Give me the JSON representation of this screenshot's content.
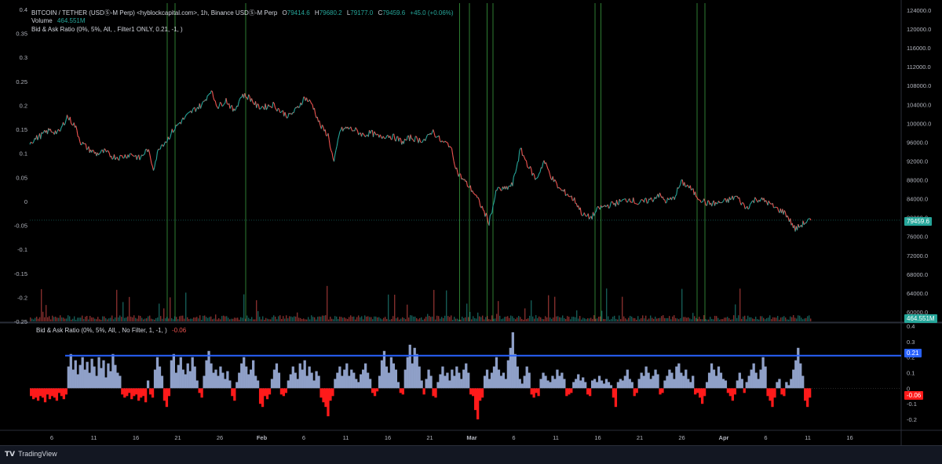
{
  "main_legend": {
    "symbol": "BITCOIN / TETHER (USDⓈ-M Perp) <hyblockcapital.com>, 1h, Binance USDⓈ-M Perp",
    "o_label": "O",
    "o": "79414.6",
    "h_label": "H",
    "h": "79680.2",
    "l_label": "L",
    "l": "79177.0",
    "c_label": "C",
    "c": "79459.6",
    "change": "+45.0 (+0.06%)",
    "volume_label": "Volume",
    "volume_value": "464.551M",
    "indicator1": "Bid & Ask Ratio (0%, 5%, All, , Filter1 ONLY, 0.21, -1, )"
  },
  "sub_legend": {
    "indicator2": "Bid & Ask Ratio (0%, 5%, All, , No Filter, 1, -1, )",
    "indicator2_value": "-0.06"
  },
  "tags": {
    "price_current": "79459.6",
    "volume_current": "464.551M",
    "ratio_line": "0.21",
    "ratio_current": "-0.06"
  },
  "footer": {
    "brand": "TradingView"
  },
  "colors": {
    "up": "#26a69a",
    "down": "#ef5350",
    "bars_pos": "#8fa0c8",
    "bars_neg": "#ff1a1a",
    "threshold_line": "#2962ff",
    "signal": "#2e7d32"
  },
  "chart_data": [
    {
      "type": "line",
      "title": "",
      "y_left_ticks": [
        "0.4",
        "0.35",
        "0.3",
        "0.25",
        "0.2",
        "0.15",
        "0.1",
        "0.05",
        "0",
        "-0.05",
        "-0.1",
        "-0.15",
        "-0.2",
        "-0.25"
      ],
      "y_right_ticks": [
        "124000.0",
        "120000.0",
        "116000.0",
        "112000.0",
        "108000.0",
        "104000.0",
        "100000.0",
        "96000.0",
        "92000.0",
        "88000.0",
        "84000.0",
        "80000.0",
        "76000.0",
        "72000.0",
        "68000.0",
        "64000.0",
        "60000.0"
      ],
      "ylim": [
        58000,
        124500
      ],
      "x_ticks": [
        "6",
        "11",
        "16",
        "21",
        "26",
        "Feb",
        "6",
        "11",
        "16",
        "21",
        "Mar",
        "6",
        "11",
        "16",
        "21",
        "26",
        "Apr",
        "6",
        "11",
        "16"
      ],
      "x_tick_bold": [
        "Feb",
        "Mar",
        "Apr"
      ],
      "last_price": 79459.6,
      "series": [
        {
          "x": [
            0,
            6,
            10,
            15,
            19,
            23,
            26,
            30,
            34,
            38,
            42,
            46,
            52,
            56,
            60,
            63,
            66,
            70,
            73,
            76,
            80,
            84,
            88,
            92,
            96,
            100,
            104,
            108,
            112,
            116,
            120,
            124,
            128,
            132,
            136,
            140,
            144,
            148,
            152,
            155,
            158,
            162,
            166,
            170,
            174,
            178,
            182,
            186,
            190,
            194,
            198,
            202,
            205,
            210,
            214,
            218,
            222,
            226,
            230,
            234,
            238,
            242,
            246,
            250,
            254,
            258,
            262,
            266,
            270,
            274,
            278,
            282,
            286,
            290,
            294,
            298,
            302,
            306,
            310,
            314,
            318,
            320,
            324,
            328,
            332,
            336,
            340,
            345,
            350,
            355,
            360,
            365,
            370,
            375,
            380,
            385,
            390,
            395,
            398
          ],
          "values": [
            96000,
            97500,
            98500,
            98000,
            101500,
            99500,
            96000,
            94500,
            93500,
            94000,
            93000,
            92800,
            93500,
            92500,
            94500,
            90500,
            95000,
            96500,
            98500,
            100000,
            101500,
            103000,
            104000,
            107000,
            103500,
            105000,
            102500,
            106000,
            105500,
            103500,
            103500,
            104000,
            102500,
            101500,
            103000,
            105500,
            104000,
            99500,
            97500,
            91500,
            98500,
            99000,
            98500,
            97500,
            98000,
            97000,
            97500,
            97000,
            96000,
            97000,
            96500,
            96500,
            98500,
            96000,
            95500,
            89500,
            87500,
            85500,
            82500,
            79000,
            86000,
            86000,
            87000,
            94500,
            91000,
            88000,
            92000,
            88500,
            86000,
            85000,
            83500,
            80500,
            80000,
            82000,
            82500,
            83000,
            83500,
            84000,
            83000,
            83500,
            84000,
            85000,
            83500,
            84000,
            87500,
            86500,
            84500,
            83000,
            83000,
            83500,
            84500,
            82000,
            84000,
            83500,
            82000,
            81000,
            77500,
            79000,
            79460
          ]
        }
      ],
      "signal_lines_x": [
        70,
        74,
        110,
        219,
        224,
        233,
        236,
        288,
        291,
        340,
        344
      ]
    },
    {
      "type": "bar",
      "title": "",
      "ylim": [
        -0.25,
        0.4
      ],
      "y_ticks": [
        "0.4",
        "0.3",
        "0.2",
        "0.1",
        "0",
        "-0.1",
        "-0.2"
      ],
      "threshold": 0.21,
      "last_value": -0.06,
      "values": [
        -0.05,
        -0.07,
        -0.06,
        -0.08,
        -0.05,
        -0.06,
        -0.09,
        -0.04,
        -0.07,
        -0.05,
        -0.06,
        -0.08,
        -0.03,
        -0.05,
        -0.07,
        -0.04,
        0.14,
        0.22,
        0.12,
        0.18,
        0.09,
        0.15,
        0.2,
        0.12,
        0.17,
        0.1,
        0.19,
        0.14,
        0.08,
        0.2,
        0.13,
        0.18,
        0.07,
        0.16,
        0.11,
        0.22,
        0.15,
        0.1,
        0.08,
        -0.04,
        -0.06,
        -0.05,
        -0.03,
        -0.07,
        -0.05,
        -0.04,
        -0.08,
        -0.06,
        -0.05,
        -0.09,
        0.05,
        -0.04,
        -0.06,
        0.12,
        0.2,
        0.14,
        0.08,
        -0.08,
        -0.12,
        -0.05,
        0.18,
        0.22,
        0.1,
        0.15,
        0.2,
        0.12,
        0.09,
        0.16,
        0.11,
        0.2,
        0.14,
        0.05,
        -0.03,
        -0.06,
        0.08,
        0.18,
        0.24,
        0.16,
        0.1,
        0.12,
        0.08,
        0.14,
        0.1,
        0.06,
        0.11,
        0.05,
        -0.05,
        -0.08,
        0.04,
        0.1,
        0.16,
        0.2,
        0.14,
        0.09,
        0.12,
        0.18,
        0.08,
        0.05,
        -0.1,
        -0.12,
        -0.05,
        -0.07,
        -0.04,
        0.06,
        0.12,
        0.16,
        0.1,
        -0.04,
        -0.05,
        -0.03,
        0.05,
        0.09,
        0.14,
        0.1,
        0.06,
        0.16,
        0.12,
        0.18,
        0.08,
        0.14,
        0.1,
        0.05,
        0.11,
        0.08,
        -0.06,
        -0.09,
        -0.12,
        -0.18,
        -0.08,
        -0.05,
        0.06,
        0.1,
        0.14,
        0.08,
        0.12,
        0.16,
        0.08,
        0.12,
        0.1,
        0.06,
        0.04,
        0.09,
        0.12,
        0.16,
        0.1,
        0.06,
        -0.03,
        -0.05,
        -0.02,
        0.08,
        0.18,
        0.24,
        0.14,
        0.1,
        0.2,
        0.16,
        0.12,
        0.04,
        -0.03,
        -0.04,
        0.12,
        0.2,
        0.28,
        0.16,
        0.26,
        0.22,
        0.14,
        0.05,
        -0.04,
        0.06,
        0.12,
        0.08,
        -0.05,
        -0.06,
        0.04,
        0.09,
        0.14,
        0.08,
        0.1,
        0.05,
        0.12,
        0.08,
        0.14,
        0.1,
        0.06,
        0.12,
        0.16,
        0.1,
        -0.04,
        -0.05,
        -0.14,
        -0.2,
        -0.08,
        -0.06,
        0.08,
        0.12,
        0.06,
        0.1,
        0.14,
        0.2,
        0.12,
        0.08,
        0.1,
        0.06,
        0.18,
        0.26,
        0.36,
        0.22,
        0.14,
        0.06,
        0.03,
        0.08,
        0.14,
        0.1,
        -0.04,
        -0.06,
        -0.03,
        -0.05,
        0.06,
        0.1,
        0.08,
        0.05,
        0.04,
        0.08,
        0.06,
        0.12,
        0.08,
        0.1,
        0.06,
        -0.05,
        -0.04,
        -0.03,
        0.04,
        0.06,
        0.09,
        0.05,
        0.07,
        0.04,
        -0.04,
        -0.05,
        0.05,
        0.06,
        0.04,
        0.08,
        0.05,
        0.03,
        0.06,
        0.04,
        0.02,
        -0.06,
        -0.12,
        0.04,
        0.06,
        0.05,
        0.08,
        0.12,
        0.06,
        0.04,
        -0.05,
        -0.03,
        0.06,
        0.1,
        0.08,
        0.14,
        0.1,
        0.06,
        0.08,
        0.12,
        0.09,
        -0.04,
        -0.03,
        0.05,
        0.08,
        0.12,
        0.1,
        0.06,
        0.14,
        0.16,
        0.1,
        0.08,
        0.12,
        0.06,
        0.04,
        0.08,
        -0.04,
        -0.03,
        -0.06,
        -0.1,
        -0.05,
        0.04,
        0.1,
        0.16,
        0.12,
        0.08,
        0.14,
        0.1,
        0.06,
        0.05,
        -0.03,
        -0.05,
        -0.08,
        -0.04,
        0.05,
        0.1,
        0.06,
        -0.03,
        0.04,
        0.08,
        0.12,
        0.16,
        0.1,
        0.06,
        0.12,
        0.2,
        0.14,
        -0.05,
        -0.08,
        -0.12,
        -0.06,
        0.04,
        0.06,
        -0.04,
        -0.05,
        0.04,
        0.02,
        0.06,
        0.12,
        0.18,
        0.26,
        0.16,
        0.08,
        -0.08,
        -0.12,
        -0.06
      ]
    }
  ]
}
